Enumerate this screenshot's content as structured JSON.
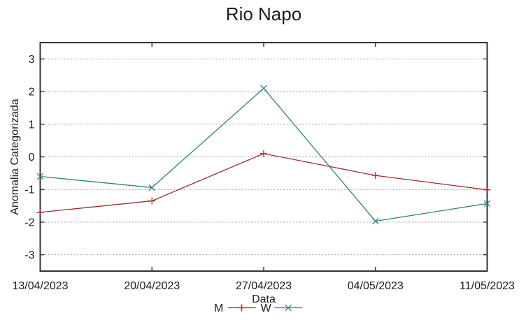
{
  "chart_data": {
    "type": "line",
    "title": "Rio Napo",
    "xlabel": "Data",
    "ylabel": "Anomalia Categorizada",
    "categories": [
      "13/04/2023",
      "20/04/2023",
      "27/04/2023",
      "04/05/2023",
      "11/05/2023"
    ],
    "series": [
      {
        "name": "M",
        "color": "#9f2d2d",
        "marker": "plus",
        "values": [
          -1.7,
          -1.35,
          0.1,
          -0.57,
          -1.01
        ]
      },
      {
        "name": "W",
        "color": "#2e8282",
        "marker": "cross",
        "values": [
          -0.6,
          -0.94,
          2.1,
          -1.97,
          -1.43
        ]
      }
    ],
    "yticks": [
      3,
      2,
      1,
      0,
      -1,
      -2,
      -3
    ],
    "ylim": [
      -3.5,
      3.5
    ],
    "grid": true,
    "grid_style": "dotted",
    "legend_position": "bottom-center",
    "colors": {
      "axis": "#333333",
      "grid": "#9a9a9a",
      "text": "#1c1c1c"
    }
  }
}
